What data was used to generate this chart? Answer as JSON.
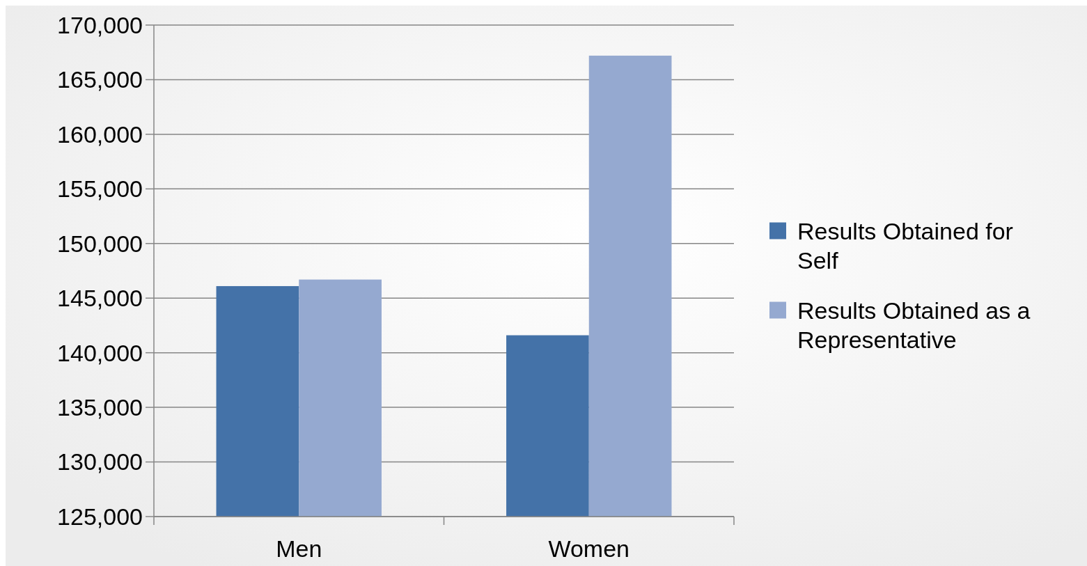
{
  "chart_data": {
    "type": "bar",
    "categories": [
      "Men",
      "Women"
    ],
    "series": [
      {
        "name": "Results Obtained for Self",
        "color": "#4472a8",
        "values": [
          146100,
          141600
        ]
      },
      {
        "name": "Results Obtained as a Representative",
        "color": "#95a9d0",
        "values": [
          146700,
          167200
        ]
      }
    ],
    "ylim": [
      125000,
      170000
    ],
    "yticks": [
      {
        "value": 125000,
        "label": "125,000"
      },
      {
        "value": 130000,
        "label": "130,000"
      },
      {
        "value": 135000,
        "label": "135,000"
      },
      {
        "value": 140000,
        "label": "140,000"
      },
      {
        "value": 145000,
        "label": "145,000"
      },
      {
        "value": 150000,
        "label": "150,000"
      },
      {
        "value": 155000,
        "label": "155,000"
      },
      {
        "value": 160000,
        "label": "160,000"
      },
      {
        "value": 165000,
        "label": "165,000"
      },
      {
        "value": 170000,
        "label": "170,000"
      }
    ],
    "grid": "y",
    "legend": "right"
  }
}
